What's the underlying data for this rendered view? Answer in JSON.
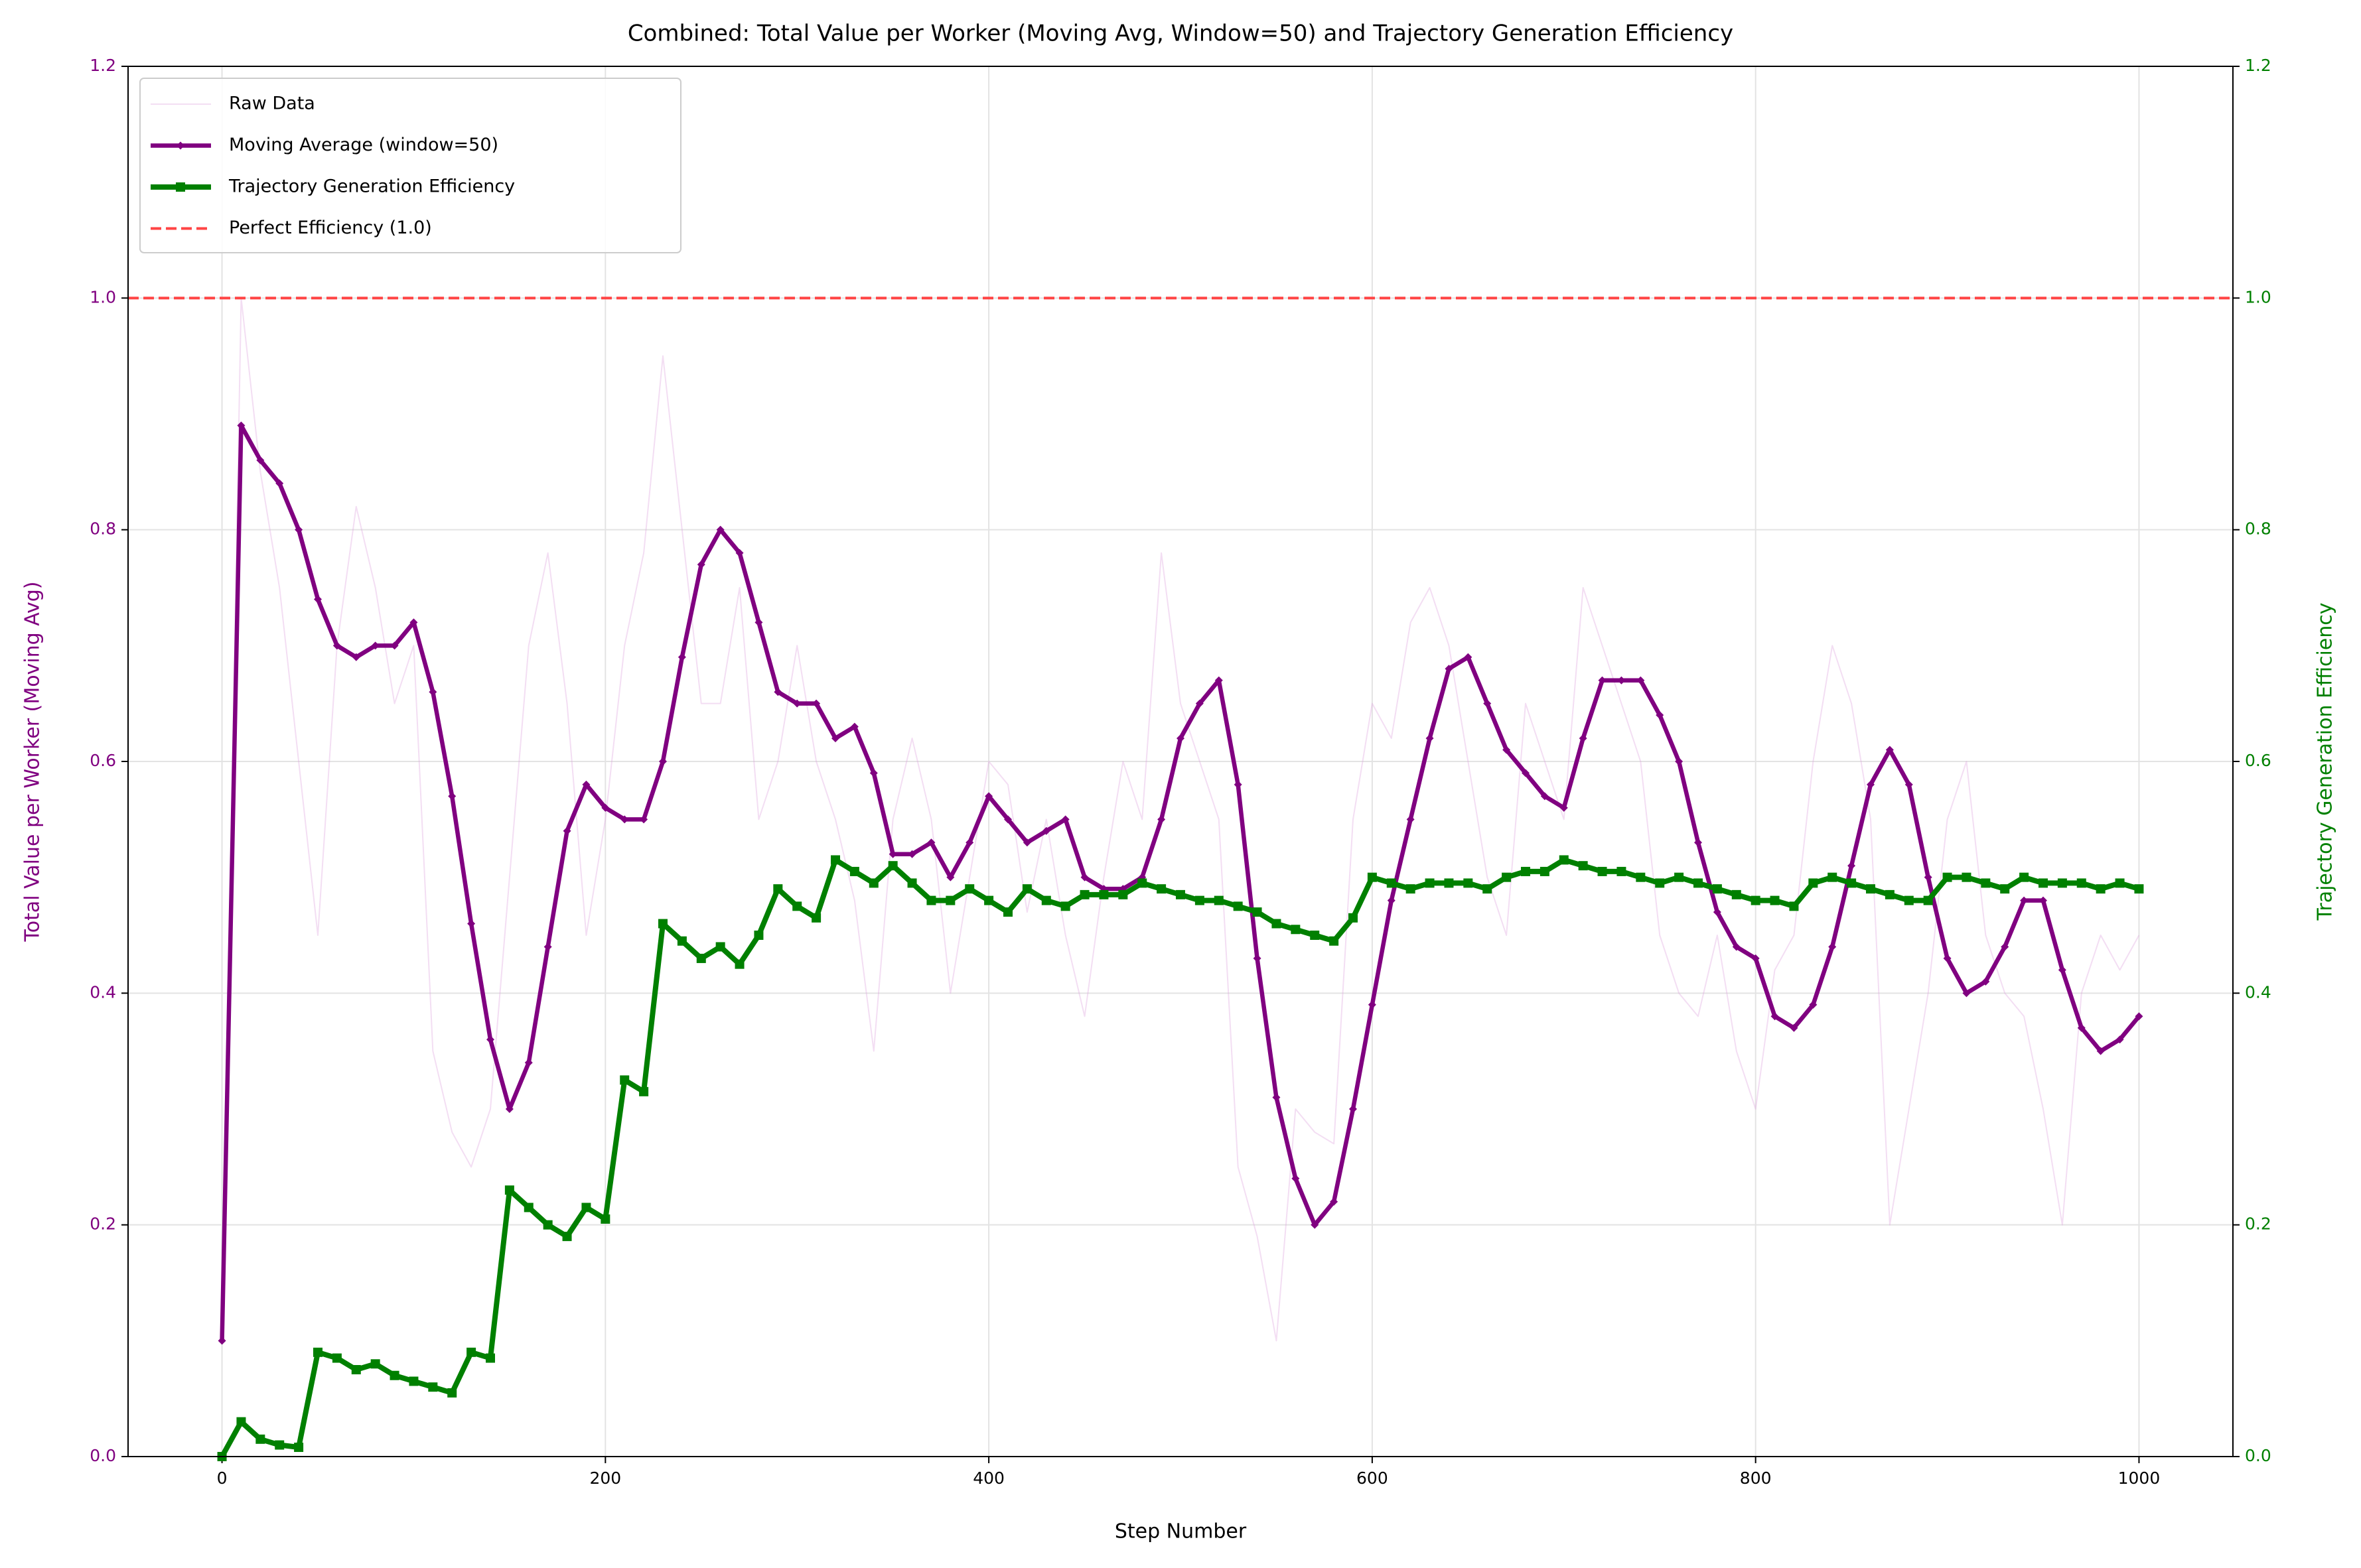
{
  "chart_data": {
    "type": "line",
    "title": "Combined: Total Value per Worker (Moving Avg, Window=50) and Trajectory Generation Efficiency",
    "x_label": "Step Number",
    "y_label": "Total Value per Worker (Moving Avg)",
    "y2_label": "Trajectory Generation Efficiency",
    "x": [
      0,
      10,
      20,
      30,
      40,
      50,
      60,
      70,
      80,
      90,
      100,
      110,
      120,
      130,
      140,
      150,
      160,
      170,
      180,
      190,
      200,
      210,
      220,
      230,
      240,
      250,
      260,
      270,
      280,
      290,
      300,
      310,
      320,
      330,
      340,
      350,
      360,
      370,
      380,
      390,
      400,
      410,
      420,
      430,
      440,
      450,
      460,
      470,
      480,
      490,
      500,
      510,
      520,
      530,
      540,
      550,
      560,
      570,
      580,
      590,
      600,
      610,
      620,
      630,
      640,
      650,
      660,
      670,
      680,
      690,
      700,
      710,
      720,
      730,
      740,
      750,
      760,
      770,
      780,
      790,
      800,
      810,
      820,
      830,
      840,
      850,
      860,
      870,
      880,
      890,
      900,
      910,
      920,
      930,
      940,
      950,
      960,
      970,
      980,
      990,
      1000
    ],
    "series": [
      {
        "name": "Raw Data",
        "color": "plum",
        "alpha": 0.35,
        "axis": "y",
        "values": [
          0.1,
          1.0,
          0.85,
          0.75,
          0.6,
          0.45,
          0.7,
          0.82,
          0.75,
          0.65,
          0.7,
          0.35,
          0.28,
          0.25,
          0.3,
          0.5,
          0.7,
          0.78,
          0.65,
          0.45,
          0.55,
          0.7,
          0.78,
          0.95,
          0.8,
          0.65,
          0.65,
          0.75,
          0.55,
          0.6,
          0.7,
          0.6,
          0.55,
          0.48,
          0.35,
          0.55,
          0.62,
          0.55,
          0.4,
          0.5,
          0.6,
          0.58,
          0.47,
          0.55,
          0.45,
          0.38,
          0.5,
          0.6,
          0.55,
          0.78,
          0.65,
          0.6,
          0.55,
          0.25,
          0.19,
          0.1,
          0.3,
          0.28,
          0.27,
          0.55,
          0.65,
          0.62,
          0.72,
          0.75,
          0.7,
          0.6,
          0.5,
          0.45,
          0.65,
          0.6,
          0.55,
          0.75,
          0.7,
          0.65,
          0.6,
          0.45,
          0.4,
          0.38,
          0.45,
          0.35,
          0.3,
          0.42,
          0.45,
          0.6,
          0.7,
          0.65,
          0.55,
          0.2,
          0.3,
          0.4,
          0.55,
          0.6,
          0.45,
          0.4,
          0.38,
          0.3,
          0.2,
          0.4,
          0.45,
          0.42,
          0.45
        ]
      },
      {
        "name": "Moving Average (window=50)",
        "color": "purple",
        "marker": "diamond",
        "axis": "y",
        "values": [
          0.1,
          0.89,
          0.86,
          0.84,
          0.8,
          0.74,
          0.7,
          0.69,
          0.7,
          0.7,
          0.72,
          0.66,
          0.57,
          0.46,
          0.36,
          0.3,
          0.34,
          0.44,
          0.54,
          0.58,
          0.56,
          0.55,
          0.55,
          0.6,
          0.69,
          0.77,
          0.8,
          0.78,
          0.72,
          0.66,
          0.65,
          0.65,
          0.62,
          0.63,
          0.59,
          0.52,
          0.52,
          0.53,
          0.5,
          0.53,
          0.57,
          0.55,
          0.53,
          0.54,
          0.55,
          0.5,
          0.49,
          0.49,
          0.5,
          0.55,
          0.62,
          0.65,
          0.67,
          0.58,
          0.43,
          0.31,
          0.24,
          0.2,
          0.22,
          0.3,
          0.39,
          0.48,
          0.55,
          0.62,
          0.68,
          0.69,
          0.65,
          0.61,
          0.59,
          0.57,
          0.56,
          0.62,
          0.67,
          0.67,
          0.67,
          0.64,
          0.6,
          0.53,
          0.47,
          0.44,
          0.43,
          0.38,
          0.37,
          0.39,
          0.44,
          0.51,
          0.58,
          0.61,
          0.58,
          0.5,
          0.43,
          0.4,
          0.41,
          0.44,
          0.48,
          0.48,
          0.42,
          0.37,
          0.35,
          0.36,
          0.38
        ]
      },
      {
        "name": "Trajectory Generation Efficiency",
        "color": "green",
        "marker": "square",
        "axis": "y2",
        "values": [
          0,
          0.03,
          0.015,
          0.01,
          0.008,
          0.09,
          0.085,
          0.075,
          0.08,
          0.07,
          0.065,
          0.06,
          0.055,
          0.09,
          0.085,
          0.23,
          0.215,
          0.2,
          0.19,
          0.215,
          0.205,
          0.325,
          0.315,
          0.46,
          0.445,
          0.43,
          0.44,
          0.425,
          0.45,
          0.49,
          0.475,
          0.465,
          0.515,
          0.505,
          0.495,
          0.51,
          0.495,
          0.48,
          0.48,
          0.49,
          0.48,
          0.47,
          0.49,
          0.48,
          0.475,
          0.485,
          0.485,
          0.485,
          0.495,
          0.49,
          0.485,
          0.48,
          0.48,
          0.475,
          0.47,
          0.46,
          0.455,
          0.45,
          0.445,
          0.465,
          0.5,
          0.495,
          0.49,
          0.495,
          0.495,
          0.495,
          0.49,
          0.5,
          0.505,
          0.505,
          0.515,
          0.51,
          0.505,
          0.505,
          0.5,
          0.495,
          0.5,
          0.495,
          0.49,
          0.485,
          0.48,
          0.48,
          0.475,
          0.495,
          0.5,
          0.495,
          0.49,
          0.485,
          0.48,
          0.48,
          0.5,
          0.5,
          0.495,
          0.49,
          0.5,
          0.495,
          0.495,
          0.495,
          0.49,
          0.495,
          0.49
        ]
      }
    ],
    "reference_line": {
      "name": "Perfect Efficiency (1.0)",
      "value": 1.0,
      "color": "#ff4444",
      "axis": "y2"
    },
    "xlim": [
      -49,
      1049
    ],
    "xticks": [
      0,
      200,
      400,
      600,
      800,
      1000
    ],
    "ylim": [
      0,
      1.2
    ],
    "yticks": [
      {
        "value": 0,
        "label": "0.0"
      },
      0.2,
      0.4,
      0.6,
      0.8,
      {
        "value": 1,
        "label": "1.0"
      },
      1.2
    ],
    "y2lim": [
      0,
      1.2
    ],
    "y2ticks": [
      {
        "value": 0,
        "label": "0.0"
      },
      0.2,
      0.4,
      0.6,
      0.8,
      {
        "value": 1,
        "label": "1.0"
      },
      1.2
    ],
    "y_color": "purple",
    "y2_color": "green",
    "grid": true,
    "legend": "upper left"
  }
}
